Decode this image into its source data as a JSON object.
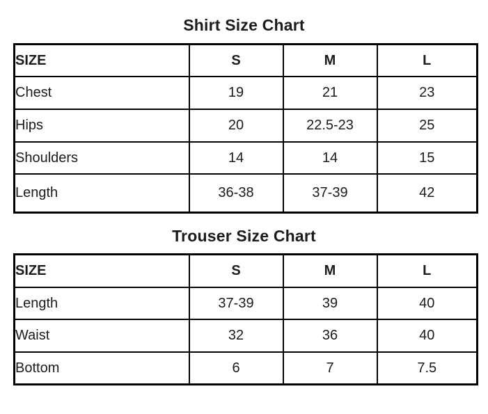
{
  "colors": {
    "background": "#ffffff",
    "text": "#1b1b1b",
    "border": "#000000"
  },
  "chart_data": [
    {
      "type": "table",
      "title": "Shirt Size Chart",
      "columns": [
        "SIZE",
        "S",
        "M",
        "L"
      ],
      "rows": [
        [
          "Chest",
          "19",
          "21",
          "23"
        ],
        [
          "Hips",
          "20",
          "22.5-23",
          "25"
        ],
        [
          "Shoulders",
          "14",
          "14",
          "15"
        ],
        [
          "Length",
          "36-38",
          "37-39",
          "42"
        ]
      ]
    },
    {
      "type": "table",
      "title": "Trouser Size Chart",
      "columns": [
        "SIZE",
        "S",
        "M",
        "L"
      ],
      "rows": [
        [
          "Length",
          "37-39",
          "39",
          "40"
        ],
        [
          "Waist",
          "32",
          "36",
          "40"
        ],
        [
          "Bottom",
          "6",
          "7",
          "7.5"
        ]
      ]
    }
  ]
}
